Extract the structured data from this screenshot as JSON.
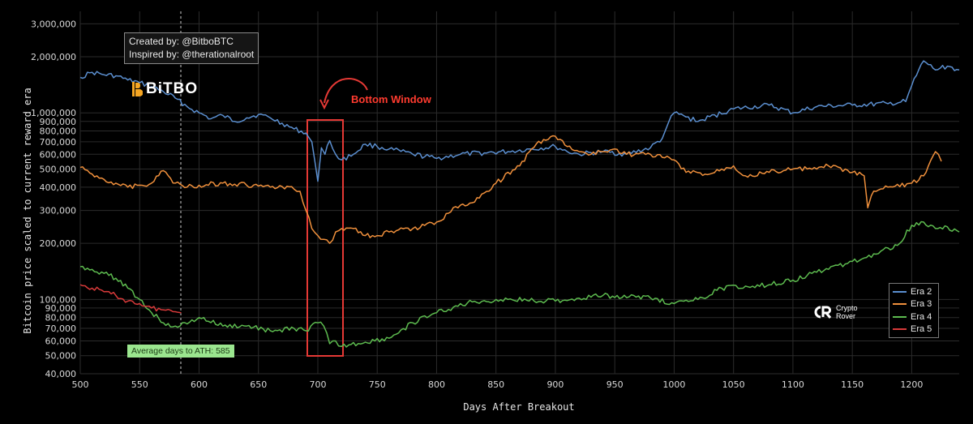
{
  "annotations": {
    "created_by": "Created by: @BitboBTC",
    "inspired_by": "Inspired by: @therationalroot",
    "brand": "BiTBO",
    "bottom_window": "Bottom Window",
    "ath_label": "Average days to ATH: 585",
    "watermark_line1": "Crypto",
    "watermark_line2": "Rover"
  },
  "chart_data": {
    "type": "line",
    "xlabel": "Days After Breakout",
    "ylabel": "Bitcoin price scaled to current reward era",
    "x_scale": "linear",
    "y_scale": "log",
    "xlim": [
      500,
      1240
    ],
    "ylim": [
      40000,
      3500000
    ],
    "x_ticks": [
      500,
      550,
      600,
      650,
      700,
      750,
      800,
      850,
      900,
      950,
      1000,
      1050,
      1100,
      1150,
      1200
    ],
    "x_tick_labels": [
      "500",
      "550",
      "600",
      "650",
      "700",
      "750",
      "800",
      "850",
      "900",
      "950",
      "1000",
      "1050",
      "1100",
      "1150",
      "1200"
    ],
    "y_ticks": [
      40000,
      50000,
      60000,
      70000,
      80000,
      90000,
      100000,
      200000,
      300000,
      400000,
      500000,
      600000,
      700000,
      800000,
      900000,
      1000000,
      2000000,
      3000000
    ],
    "y_tick_labels": [
      "40,000",
      "50,000",
      "60,000",
      "70,000",
      "80,000",
      "90,000",
      "100,000",
      "200,000",
      "300,000",
      "400,000",
      "500,000",
      "600,000",
      "700,000",
      "800,000",
      "900,000",
      "1,000,000",
      "2,000,000",
      "3,000,000"
    ],
    "grid": true,
    "legend_position": "bottom-right",
    "vertical_marker_x": 585,
    "highlight_window": [
      690,
      720
    ],
    "series": [
      {
        "name": "Era 2",
        "color": "#5b8fd0",
        "x": [
          500,
          510,
          520,
          530,
          540,
          550,
          560,
          570,
          580,
          590,
          600,
          610,
          620,
          630,
          640,
          650,
          660,
          670,
          680,
          690,
          695,
          700,
          703,
          706,
          710,
          715,
          720,
          730,
          740,
          750,
          760,
          780,
          800,
          820,
          840,
          860,
          880,
          900,
          910,
          920,
          940,
          960,
          980,
          990,
          995,
          1000,
          1020,
          1050,
          1080,
          1100,
          1120,
          1150,
          1180,
          1195,
          1200,
          1210,
          1220,
          1230,
          1240
        ],
        "y": [
          1550000,
          1650000,
          1600000,
          1580000,
          1500000,
          1450000,
          1380000,
          1300000,
          1200000,
          1080000,
          1000000,
          930000,
          970000,
          900000,
          940000,
          980000,
          940000,
          880000,
          820000,
          780000,
          700000,
          430000,
          650000,
          600000,
          710000,
          600000,
          560000,
          600000,
          680000,
          660000,
          640000,
          600000,
          570000,
          600000,
          610000,
          620000,
          640000,
          660000,
          620000,
          600000,
          620000,
          600000,
          650000,
          730000,
          880000,
          1000000,
          900000,
          1050000,
          1100000,
          1000000,
          1080000,
          1100000,
          1120000,
          1150000,
          1400000,
          1900000,
          1700000,
          1780000,
          1700000
        ]
      },
      {
        "name": "Era 3",
        "color": "#f0903c",
        "x": [
          500,
          510,
          520,
          530,
          540,
          550,
          560,
          570,
          580,
          590,
          600,
          620,
          640,
          660,
          680,
          685,
          690,
          695,
          700,
          705,
          710,
          715,
          720,
          730,
          740,
          750,
          760,
          780,
          800,
          810,
          820,
          830,
          850,
          870,
          880,
          890,
          900,
          910,
          920,
          930,
          940,
          950,
          960,
          980,
          1000,
          1010,
          1030,
          1040,
          1050,
          1060,
          1080,
          1100,
          1120,
          1130,
          1150,
          1160,
          1163,
          1166,
          1170,
          1180,
          1200,
          1210,
          1220,
          1225
        ],
        "y": [
          510000,
          470000,
          440000,
          420000,
          400000,
          410000,
          420000,
          490000,
          420000,
          400000,
          410000,
          420000,
          410000,
          400000,
          390000,
          380000,
          300000,
          240000,
          220000,
          210000,
          200000,
          230000,
          240000,
          240000,
          220000,
          220000,
          230000,
          240000,
          260000,
          290000,
          320000,
          330000,
          420000,
          520000,
          640000,
          720000,
          750000,
          660000,
          620000,
          600000,
          620000,
          640000,
          600000,
          600000,
          560000,
          480000,
          470000,
          500000,
          520000,
          460000,
          480000,
          500000,
          500000,
          520000,
          480000,
          460000,
          310000,
          360000,
          380000,
          400000,
          420000,
          460000,
          620000,
          550000
        ]
      },
      {
        "name": "Era 4",
        "color": "#5dbb4f",
        "x": [
          500,
          510,
          520,
          530,
          540,
          550,
          560,
          570,
          580,
          590,
          600,
          620,
          640,
          660,
          680,
          690,
          700,
          705,
          710,
          715,
          720,
          740,
          760,
          780,
          800,
          830,
          860,
          900,
          940,
          980,
          1000,
          1020,
          1040,
          1060,
          1080,
          1100,
          1120,
          1150,
          1170,
          1190,
          1200,
          1210,
          1220,
          1230,
          1240
        ],
        "y": [
          150000,
          145000,
          138000,
          130000,
          115000,
          100000,
          85000,
          75000,
          72000,
          74000,
          80000,
          72000,
          72000,
          68000,
          70000,
          68000,
          75000,
          72000,
          58000,
          60000,
          56000,
          59000,
          62000,
          75000,
          85000,
          97000,
          100000,
          98000,
          105000,
          102000,
          95000,
          100000,
          115000,
          118000,
          120000,
          127000,
          140000,
          160000,
          175000,
          200000,
          250000,
          260000,
          240000,
          245000,
          230000
        ]
      },
      {
        "name": "Era 5",
        "color": "#d93a3a",
        "x": [
          500,
          510,
          520,
          530,
          540,
          550,
          560,
          570,
          580,
          585
        ],
        "y": [
          120000,
          115000,
          110000,
          105000,
          98000,
          95000,
          90000,
          88000,
          86000,
          85000
        ]
      }
    ]
  }
}
